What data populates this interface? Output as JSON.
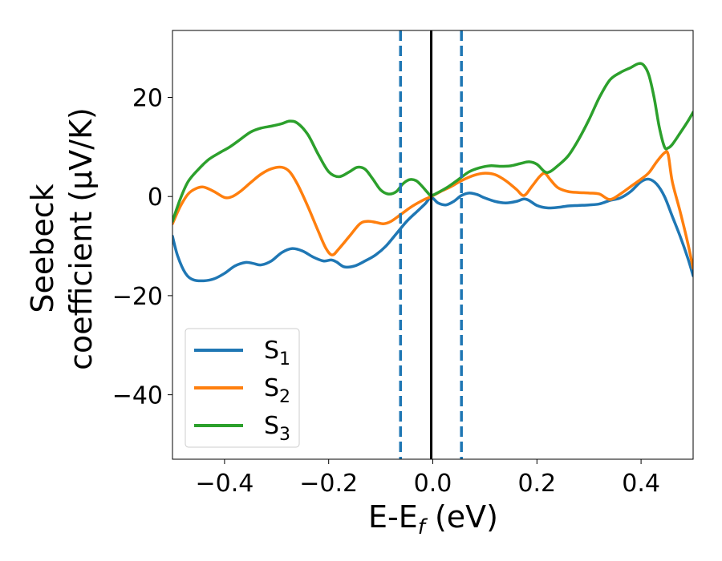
{
  "chart_data": {
    "type": "line",
    "xlabel": "E-E",
    "xlabel_sub": "f",
    "xlabel_unit": " (eV)",
    "ylabel_line1": "Seebeck",
    "ylabel_line2": "coefficient  (μV/K)",
    "xlim": [
      -0.5,
      0.5
    ],
    "ylim": [
      -53,
      33.5
    ],
    "x_ticks": [
      -0.4,
      -0.2,
      0.0,
      0.2,
      0.4
    ],
    "x_tick_labels": [
      "−0.4",
      "−0.2",
      "0.0",
      "0.2",
      "0.4"
    ],
    "y_ticks": [
      20,
      0,
      -20,
      -40
    ],
    "y_tick_labels": [
      "20",
      "0",
      "−20",
      "−40"
    ],
    "grid": false,
    "legend_position": "lower-left",
    "vlines": [
      {
        "x": -0.062,
        "style": "dashed",
        "color": "#1f77b4"
      },
      {
        "x": -0.003,
        "style": "solid",
        "color": "#000000"
      },
      {
        "x": 0.055,
        "style": "dashed",
        "color": "#1f77b4"
      }
    ],
    "series": [
      {
        "name": "S",
        "sub": "1",
        "color": "#1f77b4",
        "points": [
          [
            -0.5,
            -8
          ],
          [
            -0.49,
            -12
          ],
          [
            -0.475,
            -15.5
          ],
          [
            -0.46,
            -16.8
          ],
          [
            -0.44,
            -17
          ],
          [
            -0.42,
            -16.6
          ],
          [
            -0.4,
            -15.5
          ],
          [
            -0.38,
            -14
          ],
          [
            -0.36,
            -13.3
          ],
          [
            -0.345,
            -13.5
          ],
          [
            -0.33,
            -13.8
          ],
          [
            -0.31,
            -13
          ],
          [
            -0.29,
            -11.3
          ],
          [
            -0.27,
            -10.5
          ],
          [
            -0.25,
            -11
          ],
          [
            -0.23,
            -12.2
          ],
          [
            -0.21,
            -13
          ],
          [
            -0.195,
            -12.8
          ],
          [
            -0.185,
            -13.2
          ],
          [
            -0.17,
            -14.2
          ],
          [
            -0.15,
            -14
          ],
          [
            -0.13,
            -13
          ],
          [
            -0.11,
            -11.8
          ],
          [
            -0.09,
            -10
          ],
          [
            -0.07,
            -7.5
          ],
          [
            -0.05,
            -5
          ],
          [
            -0.03,
            -3
          ],
          [
            -0.015,
            -1.5
          ],
          [
            -0.003,
            -0.2
          ],
          [
            0.01,
            -1.3
          ],
          [
            0.025,
            -1.7
          ],
          [
            0.04,
            -1
          ],
          [
            0.055,
            0.2
          ],
          [
            0.07,
            0.7
          ],
          [
            0.085,
            0.4
          ],
          [
            0.1,
            -0.3
          ],
          [
            0.12,
            -1
          ],
          [
            0.14,
            -1.3
          ],
          [
            0.16,
            -1
          ],
          [
            0.175,
            -0.5
          ],
          [
            0.185,
            -0.8
          ],
          [
            0.2,
            -1.8
          ],
          [
            0.22,
            -2.3
          ],
          [
            0.24,
            -2.2
          ],
          [
            0.26,
            -1.9
          ],
          [
            0.28,
            -1.8
          ],
          [
            0.3,
            -1.7
          ],
          [
            0.32,
            -1.5
          ],
          [
            0.34,
            -0.8
          ],
          [
            0.36,
            -0.3
          ],
          [
            0.38,
            1
          ],
          [
            0.4,
            3
          ],
          [
            0.415,
            3.5
          ],
          [
            0.43,
            2.5
          ],
          [
            0.445,
            0
          ],
          [
            0.46,
            -4
          ],
          [
            0.475,
            -8
          ],
          [
            0.49,
            -12.5
          ],
          [
            0.5,
            -16
          ]
        ]
      },
      {
        "name": "S",
        "sub": "2",
        "color": "#ff7f0e",
        "points": [
          [
            -0.5,
            -5.5
          ],
          [
            -0.485,
            -2
          ],
          [
            -0.47,
            0.5
          ],
          [
            -0.455,
            1.6
          ],
          [
            -0.44,
            1.9
          ],
          [
            -0.42,
            1
          ],
          [
            -0.4,
            -0.2
          ],
          [
            -0.385,
            0
          ],
          [
            -0.37,
            1
          ],
          [
            -0.35,
            2.8
          ],
          [
            -0.33,
            4.5
          ],
          [
            -0.31,
            5.6
          ],
          [
            -0.29,
            5.9
          ],
          [
            -0.275,
            5
          ],
          [
            -0.26,
            2.5
          ],
          [
            -0.24,
            -2
          ],
          [
            -0.22,
            -7
          ],
          [
            -0.205,
            -10.5
          ],
          [
            -0.193,
            -11.8
          ],
          [
            -0.18,
            -10.5
          ],
          [
            -0.16,
            -8
          ],
          [
            -0.14,
            -5.5
          ],
          [
            -0.125,
            -5
          ],
          [
            -0.11,
            -5.2
          ],
          [
            -0.095,
            -5.5
          ],
          [
            -0.08,
            -5
          ],
          [
            -0.06,
            -3.5
          ],
          [
            -0.04,
            -2
          ],
          [
            -0.02,
            -0.8
          ],
          [
            -0.003,
            0
          ],
          [
            0.015,
            1
          ],
          [
            0.035,
            2
          ],
          [
            0.055,
            3.2
          ],
          [
            0.08,
            4.3
          ],
          [
            0.1,
            4.7
          ],
          [
            0.12,
            4.4
          ],
          [
            0.14,
            3.2
          ],
          [
            0.16,
            1.5
          ],
          [
            0.175,
            0.2
          ],
          [
            0.19,
            2
          ],
          [
            0.205,
            4
          ],
          [
            0.215,
            4.7
          ],
          [
            0.225,
            3.5
          ],
          [
            0.24,
            1.8
          ],
          [
            0.26,
            1
          ],
          [
            0.28,
            0.8
          ],
          [
            0.3,
            0.7
          ],
          [
            0.32,
            0.5
          ],
          [
            0.34,
            -0.6
          ],
          [
            0.36,
            0.5
          ],
          [
            0.38,
            2
          ],
          [
            0.4,
            3.5
          ],
          [
            0.415,
            4.8
          ],
          [
            0.43,
            7
          ],
          [
            0.445,
            8.8
          ],
          [
            0.452,
            8.5
          ],
          [
            0.46,
            3
          ],
          [
            0.475,
            -3
          ],
          [
            0.49,
            -9.5
          ],
          [
            0.5,
            -14.5
          ]
        ]
      },
      {
        "name": "S",
        "sub": "3",
        "color": "#2ca02c",
        "points": [
          [
            -0.5,
            -5
          ],
          [
            -0.485,
            -0.5
          ],
          [
            -0.47,
            3
          ],
          [
            -0.45,
            5.5
          ],
          [
            -0.43,
            7.5
          ],
          [
            -0.41,
            8.8
          ],
          [
            -0.39,
            10
          ],
          [
            -0.37,
            11.5
          ],
          [
            -0.35,
            13
          ],
          [
            -0.33,
            13.8
          ],
          [
            -0.31,
            14.2
          ],
          [
            -0.29,
            14.7
          ],
          [
            -0.275,
            15.2
          ],
          [
            -0.26,
            14.8
          ],
          [
            -0.24,
            12.5
          ],
          [
            -0.22,
            8.5
          ],
          [
            -0.2,
            5
          ],
          [
            -0.18,
            4
          ],
          [
            -0.16,
            5
          ],
          [
            -0.145,
            5.9
          ],
          [
            -0.13,
            5.5
          ],
          [
            -0.115,
            3.5
          ],
          [
            -0.1,
            1.3
          ],
          [
            -0.085,
            0.5
          ],
          [
            -0.07,
            1
          ],
          [
            -0.058,
            2.5
          ],
          [
            -0.045,
            3.4
          ],
          [
            -0.032,
            3.2
          ],
          [
            -0.02,
            2
          ],
          [
            -0.01,
            0.8
          ],
          [
            -0.003,
            0.2
          ],
          [
            0.01,
            0.8
          ],
          [
            0.03,
            2
          ],
          [
            0.05,
            3.5
          ],
          [
            0.07,
            5
          ],
          [
            0.09,
            5.8
          ],
          [
            0.11,
            6.2
          ],
          [
            0.13,
            6.1
          ],
          [
            0.15,
            6.2
          ],
          [
            0.17,
            6.7
          ],
          [
            0.185,
            7
          ],
          [
            0.2,
            6.5
          ],
          [
            0.215,
            5
          ],
          [
            0.225,
            5
          ],
          [
            0.24,
            6.2
          ],
          [
            0.26,
            8.2
          ],
          [
            0.28,
            11.5
          ],
          [
            0.3,
            15.5
          ],
          [
            0.32,
            20
          ],
          [
            0.34,
            23.5
          ],
          [
            0.36,
            25
          ],
          [
            0.38,
            26
          ],
          [
            0.395,
            26.8
          ],
          [
            0.405,
            26.5
          ],
          [
            0.415,
            24.5
          ],
          [
            0.425,
            20
          ],
          [
            0.435,
            14
          ],
          [
            0.445,
            10
          ],
          [
            0.452,
            9.8
          ],
          [
            0.46,
            10.5
          ],
          [
            0.475,
            12.8
          ],
          [
            0.49,
            15.2
          ],
          [
            0.5,
            17
          ]
        ]
      }
    ]
  }
}
